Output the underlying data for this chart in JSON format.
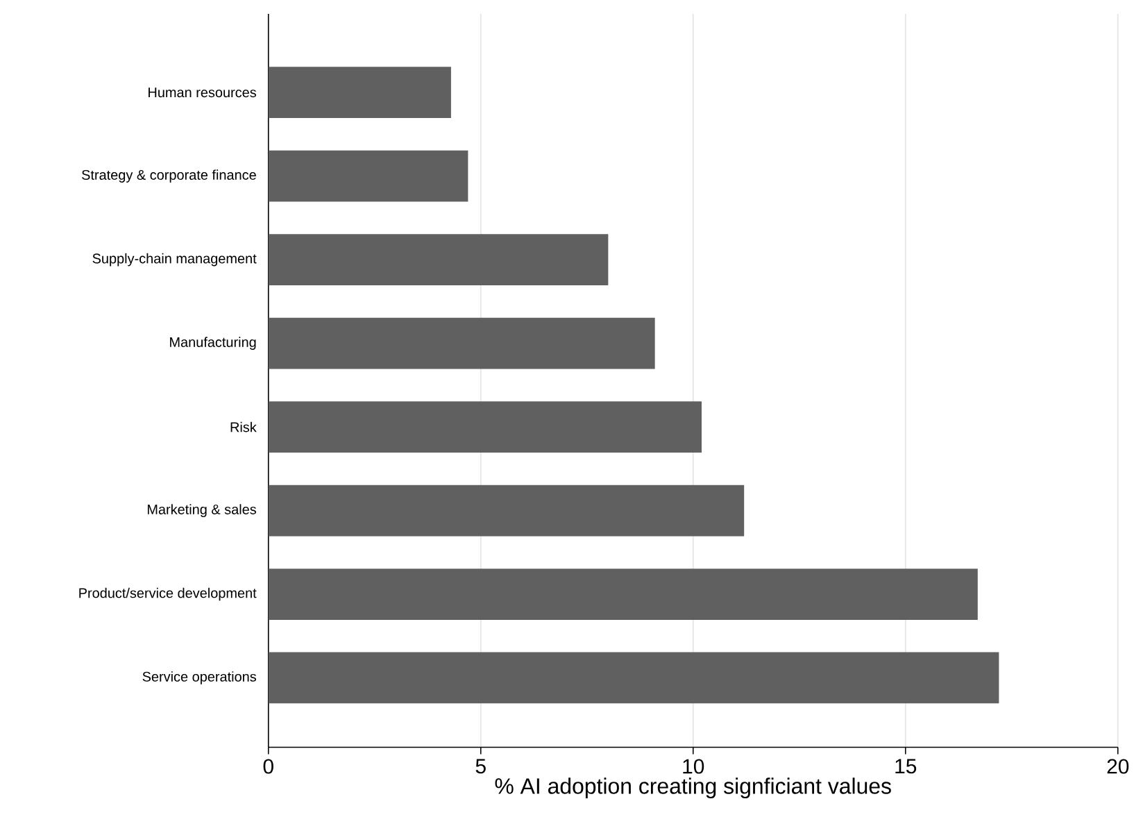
{
  "chart_data": {
    "type": "bar",
    "orientation": "horizontal",
    "categories": [
      "Human resources",
      "Strategy & corporate finance",
      "Supply-chain management",
      "Manufacturing",
      "Risk",
      "Marketing & sales",
      "Product/service development",
      "Service operations"
    ],
    "values": [
      4.3,
      4.7,
      8.0,
      9.1,
      10.2,
      11.2,
      16.7,
      17.2
    ],
    "color": "#606060",
    "xlabel": "% AI adoption creating signficiant values",
    "xlim": [
      0,
      20
    ],
    "xticks": [
      0,
      5,
      10,
      15,
      20
    ],
    "grid": "x"
  }
}
